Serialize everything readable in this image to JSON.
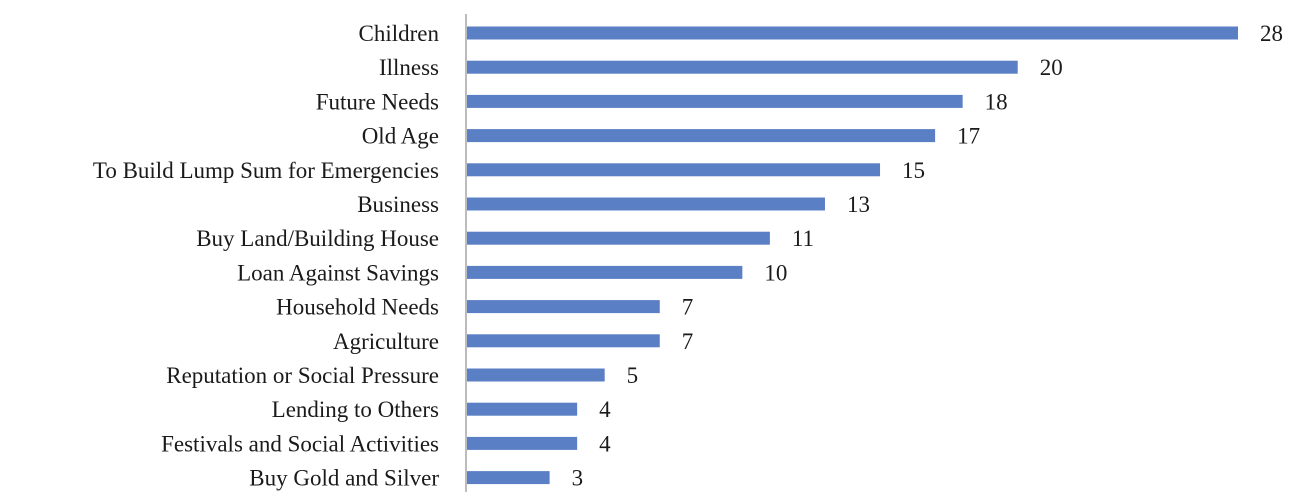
{
  "colors": {
    "bar": "#5b7fc4",
    "axis": "#a6a6a6",
    "text": "#1a1a1a"
  },
  "chart_data": {
    "type": "bar",
    "orientation": "horizontal",
    "title": "",
    "xlabel": "",
    "ylabel": "",
    "grid": false,
    "legend": "none",
    "xlim": [
      0,
      28
    ],
    "categories": [
      "Children",
      "Illness",
      "Future Needs",
      "Old Age",
      "To Build Lump Sum for Emergencies",
      "Business",
      "Buy Land/Building House",
      "Loan Against Savings",
      "Household Needs",
      "Agriculture",
      "Reputation or Social Pressure",
      "Lending to Others",
      "Festivals and Social Activities",
      "Buy Gold and Silver"
    ],
    "values": [
      28,
      20,
      18,
      17,
      15,
      13,
      11,
      10,
      7,
      7,
      5,
      4,
      4,
      3
    ],
    "data_labels": [
      "28",
      "20",
      "18",
      "17",
      "15",
      "13",
      "11",
      "10",
      "7",
      "7",
      "5",
      "4",
      "4",
      "3"
    ]
  }
}
